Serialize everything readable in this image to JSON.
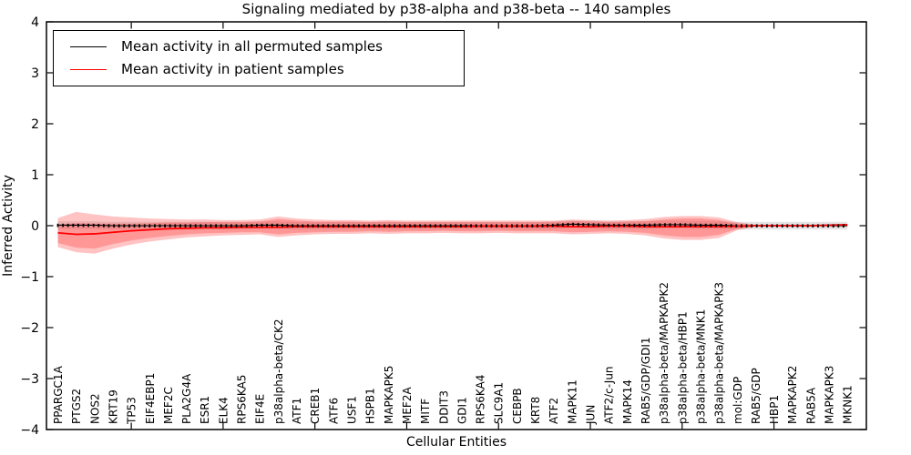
{
  "figure": {
    "background": "#ffffff"
  },
  "chart_data": {
    "type": "line",
    "title": "Signaling mediated by p38-alpha and p38-beta -- 140 samples",
    "xlabel": "Cellular Entities",
    "ylabel": "Inferred Activity",
    "ylim": [
      -4,
      4
    ],
    "yticks": [
      -4,
      -3,
      -2,
      -1,
      0,
      1,
      2,
      3,
      4
    ],
    "xtick_indices": [
      4,
      9,
      14,
      19,
      24,
      29,
      34,
      39
    ],
    "grid": false,
    "legend_position": "upper left",
    "categories": [
      "PPARGC1A",
      "PTGS2",
      "NOS2",
      "KRT19",
      "TP53",
      "EIF4EBP1",
      "MEF2C",
      "PLA2G4A",
      "ESR1",
      "ELK4",
      "RPS6KA5",
      "EIF4E",
      "p38alpha-beta/CK2",
      "ATF1",
      "CREB1",
      "ATF6",
      "USF1",
      "HSPB1",
      "MAPKAPK5",
      "MEF2A",
      "MITF",
      "DDIT3",
      "GDI1",
      "RPS6KA4",
      "SLC9A1",
      "CEBPB",
      "KRT8",
      "ATF2",
      "MAPK11",
      "JUN",
      "ATF2/c-Jun",
      "MAPK14",
      "RAB5/GDP/GDI1",
      "p38alpha-beta/MAPKAPK2",
      "p38alpha-beta/HBP1",
      "p38alpha-beta/MNK1",
      "p38alpha-beta/MAPKAPK3",
      "mol:GDP",
      "RAB5/GDP",
      "HBP1",
      "MAPKAPK2",
      "RAB5A",
      "MAPKAPK3",
      "MKNK1"
    ],
    "series": [
      {
        "name": "Mean activity in all permuted samples",
        "color": "#000000",
        "values": [
          0.01,
          0.01,
          0.01,
          0,
          0,
          0,
          0,
          0,
          0,
          0,
          0,
          0.01,
          0.01,
          0,
          0,
          0,
          0,
          0,
          0,
          0,
          0,
          0,
          0,
          0,
          0,
          0,
          0,
          0.01,
          0.03,
          0.02,
          0.01,
          0.01,
          0.01,
          0.02,
          0.02,
          0.01,
          0.01,
          0,
          0,
          0,
          0,
          0,
          0,
          0
        ]
      },
      {
        "name": "Mean activity in patient samples",
        "color": "#ff0000",
        "values": [
          -0.14,
          -0.17,
          -0.16,
          -0.13,
          -0.1,
          -0.08,
          -0.06,
          -0.05,
          -0.04,
          -0.04,
          -0.03,
          -0.03,
          -0.03,
          -0.02,
          -0.02,
          -0.02,
          -0.02,
          -0.02,
          -0.02,
          -0.02,
          -0.02,
          -0.02,
          -0.02,
          -0.01,
          -0.01,
          -0.01,
          -0.01,
          -0.01,
          -0.02,
          -0.02,
          -0.01,
          -0.01,
          -0.02,
          -0.02,
          -0.02,
          -0.02,
          -0.02,
          -0.01,
          0,
          0,
          0,
          0,
          0.01,
          0.02
        ]
      }
    ],
    "bands": [
      {
        "name": "permuted-std",
        "color": "rgba(0,0,0,0.10)",
        "half_width": 0.075
      },
      {
        "name": "patient-std-outer",
        "color": "rgba(255,40,40,0.28)",
        "upper": [
          0.15,
          0.27,
          0.22,
          0.18,
          0.16,
          0.14,
          0.13,
          0.12,
          0.12,
          0.11,
          0.11,
          0.12,
          0.18,
          0.14,
          0.12,
          0.11,
          0.11,
          0.1,
          0.11,
          0.1,
          0.1,
          0.1,
          0.1,
          0.1,
          0.1,
          0.1,
          0.1,
          0.1,
          0.12,
          0.11,
          0.1,
          0.11,
          0.13,
          0.17,
          0.19,
          0.19,
          0.16,
          0.07,
          0.02,
          0.02,
          0.02,
          0.02,
          0.02,
          0.02
        ],
        "lower": [
          -0.42,
          -0.52,
          -0.55,
          -0.45,
          -0.37,
          -0.31,
          -0.27,
          -0.23,
          -0.21,
          -0.19,
          -0.18,
          -0.17,
          -0.22,
          -0.19,
          -0.17,
          -0.16,
          -0.16,
          -0.15,
          -0.16,
          -0.15,
          -0.15,
          -0.14,
          -0.15,
          -0.15,
          -0.14,
          -0.15,
          -0.15,
          -0.15,
          -0.17,
          -0.16,
          -0.15,
          -0.16,
          -0.19,
          -0.25,
          -0.28,
          -0.28,
          -0.24,
          -0.09,
          -0.02,
          -0.02,
          -0.02,
          -0.02,
          -0.02,
          -0.02
        ]
      },
      {
        "name": "patient-std-inner",
        "color": "rgba(255,40,40,0.28)",
        "upper": [
          0.02,
          0.05,
          0.04,
          0.04,
          0.04,
          0.05,
          0.06,
          0.06,
          0.07,
          0.07,
          0.07,
          0.08,
          0.13,
          0.1,
          0.08,
          0.08,
          0.08,
          0.07,
          0.08,
          0.07,
          0.07,
          0.07,
          0.07,
          0.07,
          0.07,
          0.07,
          0.07,
          0.07,
          0.09,
          0.08,
          0.07,
          0.08,
          0.09,
          0.12,
          0.14,
          0.14,
          0.11,
          0.04,
          0.01,
          0.01,
          0.01,
          0.01,
          0.01,
          0.01
        ],
        "lower": [
          -0.34,
          -0.43,
          -0.45,
          -0.36,
          -0.29,
          -0.24,
          -0.2,
          -0.17,
          -0.15,
          -0.14,
          -0.13,
          -0.13,
          -0.17,
          -0.14,
          -0.13,
          -0.12,
          -0.12,
          -0.11,
          -0.12,
          -0.11,
          -0.11,
          -0.1,
          -0.11,
          -0.11,
          -0.1,
          -0.11,
          -0.11,
          -0.11,
          -0.13,
          -0.12,
          -0.11,
          -0.12,
          -0.14,
          -0.19,
          -0.22,
          -0.22,
          -0.18,
          -0.06,
          -0.01,
          -0.01,
          -0.01,
          -0.01,
          -0.01,
          -0.01
        ]
      }
    ]
  }
}
